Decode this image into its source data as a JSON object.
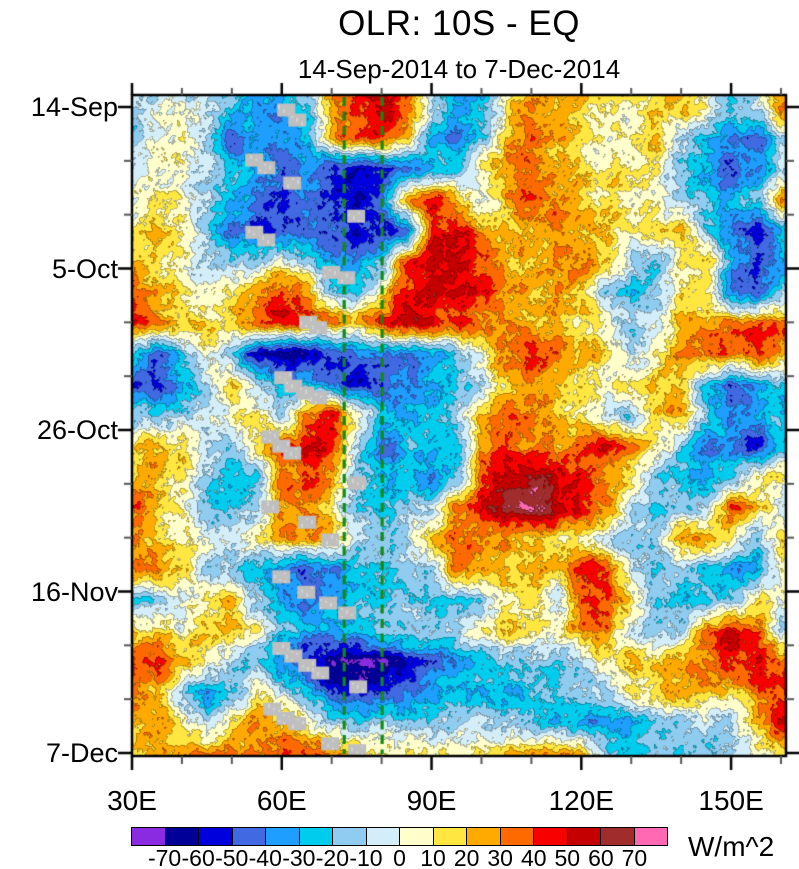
{
  "chart_data": {
    "type": "heatmap",
    "title": "OLR: 10S - EQ",
    "subtitle": "14-Sep-2014 to 7-Dec-2014",
    "grid": "off",
    "x_axis": {
      "range_lon": [
        30,
        161
      ],
      "major_lons": [
        30,
        60,
        90,
        120,
        150
      ],
      "major_labels": [
        "30E",
        "60E",
        "90E",
        "120E",
        "150E"
      ],
      "minor_lons": [
        40,
        50,
        70,
        80,
        100,
        110,
        130,
        140,
        160
      ]
    },
    "y_axis": {
      "range_days": [
        -1.56,
        84.4
      ],
      "major_days": [
        0,
        21,
        42,
        63,
        84
      ],
      "major_labels": [
        "14-Sep",
        "5-Oct",
        "26-Oct",
        "16-Nov",
        "7-Dec"
      ],
      "minor_days": [
        7,
        14,
        28,
        35,
        49,
        56,
        70,
        77
      ]
    },
    "lons": [
      30,
      35,
      40,
      45,
      50,
      55,
      60,
      65,
      70,
      75,
      80,
      85,
      90,
      95,
      100,
      105,
      110,
      115,
      120,
      125,
      130,
      135,
      140,
      145,
      150,
      155,
      160
    ],
    "values_days": [
      0,
      4,
      8,
      12,
      16,
      20,
      24,
      28,
      32,
      36,
      40,
      44,
      48,
      52,
      56,
      60,
      64,
      68,
      72,
      76,
      80,
      84
    ],
    "values": [
      [
        -10,
        -5,
        0,
        -10,
        -20,
        -40,
        -30,
        -20,
        30,
        45,
        55,
        40,
        -10,
        -35,
        -30,
        10,
        30,
        25,
        20,
        10,
        10,
        15,
        25,
        5,
        -20,
        -10,
        30
      ],
      [
        -10,
        0,
        5,
        -15,
        -50,
        -30,
        -35,
        -25,
        25,
        40,
        40,
        20,
        -30,
        -40,
        -20,
        20,
        35,
        25,
        15,
        5,
        10,
        20,
        -10,
        -30,
        -40,
        -45,
        -10
      ],
      [
        0,
        5,
        0,
        -10,
        -25,
        -35,
        -45,
        -35,
        -50,
        -60,
        -55,
        -45,
        -30,
        -20,
        10,
        30,
        30,
        20,
        15,
        10,
        15,
        10,
        -15,
        -35,
        -50,
        -40,
        -15
      ],
      [
        5,
        10,
        5,
        -15,
        -30,
        -45,
        -50,
        -40,
        -45,
        -55,
        -40,
        30,
        45,
        20,
        -10,
        25,
        40,
        30,
        20,
        15,
        10,
        5,
        -10,
        -25,
        -30,
        -20,
        25
      ],
      [
        10,
        20,
        10,
        -20,
        -40,
        -50,
        -45,
        -40,
        -50,
        -55,
        -60,
        -50,
        40,
        50,
        30,
        20,
        25,
        30,
        25,
        20,
        10,
        15,
        20,
        -20,
        -45,
        -55,
        -30
      ],
      [
        25,
        15,
        5,
        -10,
        -15,
        -15,
        5,
        -15,
        -35,
        -40,
        -20,
        40,
        55,
        55,
        40,
        25,
        20,
        25,
        30,
        20,
        -10,
        -20,
        10,
        20,
        -30,
        -50,
        -35
      ],
      [
        40,
        25,
        10,
        0,
        10,
        25,
        45,
        30,
        -15,
        -20,
        10,
        45,
        50,
        50,
        45,
        30,
        20,
        25,
        20,
        -15,
        -25,
        -10,
        15,
        10,
        -45,
        -55,
        -20
      ],
      [
        45,
        30,
        20,
        15,
        20,
        40,
        50,
        40,
        30,
        25,
        40,
        55,
        45,
        40,
        35,
        30,
        25,
        20,
        15,
        5,
        -15,
        -5,
        20,
        25,
        30,
        40,
        35
      ],
      [
        -20,
        -45,
        -20,
        10,
        -20,
        -60,
        -70,
        -65,
        -55,
        -45,
        -40,
        -45,
        -30,
        -15,
        10,
        35,
        45,
        30,
        20,
        15,
        -15,
        10,
        30,
        40,
        35,
        45,
        30
      ],
      [
        -45,
        -50,
        -35,
        -10,
        15,
        -10,
        -30,
        -25,
        -40,
        -60,
        -45,
        -40,
        -30,
        -20,
        -10,
        20,
        25,
        15,
        10,
        5,
        15,
        25,
        20,
        -25,
        -45,
        -35,
        -20
      ],
      [
        -15,
        -20,
        -10,
        -5,
        5,
        15,
        -15,
        35,
        50,
        10,
        -25,
        -35,
        -25,
        -15,
        25,
        40,
        35,
        20,
        10,
        -10,
        -20,
        20,
        25,
        -15,
        -40,
        -30,
        -25
      ],
      [
        15,
        25,
        15,
        -5,
        -15,
        20,
        35,
        50,
        40,
        -15,
        -45,
        -25,
        -20,
        -25,
        30,
        40,
        30,
        25,
        35,
        50,
        30,
        10,
        -20,
        -40,
        -35,
        -55,
        -20
      ],
      [
        20,
        25,
        10,
        -10,
        -30,
        -20,
        30,
        40,
        25,
        -20,
        -25,
        -30,
        -35,
        -20,
        40,
        55,
        60,
        50,
        40,
        25,
        10,
        -15,
        -25,
        -30,
        -20,
        10,
        15
      ],
      [
        40,
        20,
        10,
        -20,
        -25,
        -10,
        25,
        30,
        10,
        -20,
        -25,
        -15,
        -10,
        30,
        50,
        70,
        75,
        60,
        45,
        30,
        -10,
        -20,
        -15,
        -10,
        45,
        20,
        -10
      ],
      [
        25,
        15,
        10,
        5,
        0,
        15,
        25,
        30,
        20,
        -10,
        -15,
        -10,
        25,
        35,
        30,
        25,
        20,
        15,
        10,
        -10,
        -20,
        -15,
        25,
        30,
        10,
        -15,
        20
      ],
      [
        30,
        35,
        20,
        -10,
        -15,
        -25,
        -40,
        -50,
        -45,
        -30,
        -20,
        -15,
        -10,
        40,
        30,
        20,
        25,
        20,
        45,
        40,
        -10,
        -20,
        -15,
        -20,
        -35,
        -30,
        10
      ],
      [
        -30,
        -10,
        0,
        15,
        20,
        -15,
        -35,
        -45,
        -30,
        -25,
        -20,
        -15,
        -20,
        -25,
        -15,
        10,
        15,
        -10,
        35,
        40,
        10,
        -15,
        -25,
        -20,
        -15,
        10,
        5
      ],
      [
        10,
        15,
        5,
        20,
        25,
        10,
        -20,
        -30,
        -35,
        -25,
        -15,
        -10,
        -15,
        -10,
        10,
        20,
        15,
        10,
        35,
        30,
        -10,
        -20,
        -15,
        35,
        50,
        40,
        -10
      ],
      [
        35,
        45,
        25,
        10,
        -10,
        -20,
        -40,
        -55,
        -70,
        -75,
        -70,
        -55,
        -45,
        -35,
        -25,
        -20,
        -15,
        -20,
        -10,
        10,
        20,
        15,
        25,
        35,
        45,
        50,
        40
      ],
      [
        30,
        25,
        -15,
        -35,
        -25,
        10,
        -10,
        -30,
        -50,
        -55,
        -45,
        -40,
        -30,
        -25,
        -30,
        -35,
        -25,
        -20,
        -15,
        -10,
        10,
        20,
        30,
        25,
        20,
        30,
        45
      ],
      [
        20,
        25,
        10,
        -15,
        15,
        30,
        25,
        10,
        -10,
        -15,
        -10,
        -15,
        -20,
        -15,
        -10,
        -15,
        -20,
        -25,
        -30,
        -35,
        -30,
        -20,
        -15,
        -10,
        -15,
        20,
        50
      ],
      [
        15,
        20,
        25,
        30,
        35,
        30,
        35,
        40,
        30,
        20,
        10,
        15,
        10,
        5,
        10,
        15,
        25,
        30,
        25,
        -15,
        -25,
        -15,
        -20,
        -15,
        -10,
        5,
        15
      ]
    ],
    "colorbar": {
      "levels": [
        -70,
        -60,
        -50,
        -40,
        -30,
        -20,
        -10,
        0,
        10,
        20,
        30,
        40,
        50,
        60,
        70
      ],
      "tick_labels": [
        "-70",
        "-60",
        "-50",
        "-40",
        "-30",
        "-20",
        "-10",
        "0",
        "10",
        "20",
        "30",
        "40",
        "50",
        "60",
        "70"
      ],
      "units": "W/m^2"
    },
    "palette": [
      "#8a2be2",
      "#000099",
      "#0000dc",
      "#4169e1",
      "#1e9eff",
      "#00ccee",
      "#8fccf0",
      "#d4eef9",
      "#ffffcc",
      "#ffe640",
      "#ffaa00",
      "#ff6a00",
      "#f80000",
      "#c40000",
      "#a02c2c",
      "#ff69b4"
    ],
    "reference_lines": {
      "longitudes": [
        72.5,
        80.1
      ],
      "color": "#128a12",
      "style": "dashed"
    },
    "track_markers": {
      "color": "#bfbfbf",
      "shape": "square",
      "points_lon_day": [
        [
          60.9,
          0.4
        ],
        [
          63.1,
          1.7
        ],
        [
          54.5,
          6.9
        ],
        [
          56.9,
          7.9
        ],
        [
          62.1,
          9.9
        ],
        [
          74.9,
          14.2
        ],
        [
          54.5,
          16.3
        ],
        [
          56.9,
          17.3
        ],
        [
          69.9,
          21.5
        ],
        [
          72.9,
          22.2
        ],
        [
          65.3,
          28.0
        ],
        [
          67.3,
          28.7
        ],
        [
          60.3,
          35.2
        ],
        [
          62.3,
          36.3
        ],
        [
          64.7,
          37.2
        ],
        [
          67.3,
          37.8
        ],
        [
          57.7,
          42.9
        ],
        [
          59.9,
          44.1
        ],
        [
          62.1,
          45.0
        ],
        [
          75.1,
          48.9
        ],
        [
          57.7,
          52.0
        ],
        [
          65.1,
          54.0
        ],
        [
          69.7,
          56.3
        ],
        [
          59.9,
          61.1
        ],
        [
          64.9,
          63.1
        ],
        [
          69.3,
          64.5
        ],
        [
          73.1,
          65.8
        ],
        [
          59.9,
          70.4
        ],
        [
          62.3,
          71.4
        ],
        [
          65.1,
          72.6
        ],
        [
          67.7,
          73.6
        ],
        [
          75.3,
          75.4
        ],
        [
          58.1,
          78.3
        ],
        [
          60.7,
          79.5
        ],
        [
          63.1,
          80.2
        ],
        [
          69.7,
          82.8
        ],
        [
          75.1,
          83.7
        ]
      ]
    }
  }
}
